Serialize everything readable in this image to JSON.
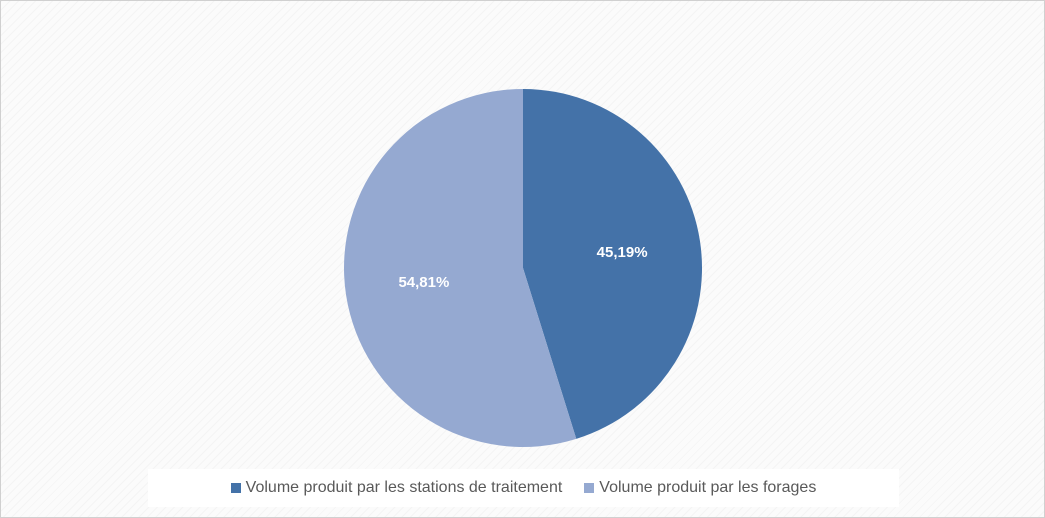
{
  "chart_data": {
    "type": "pie",
    "title": "",
    "slices": [
      {
        "label": "Volume produit par les stations de traitement",
        "value": 45.19,
        "value_label": "45,19%",
        "color": "#4472a8"
      },
      {
        "label": "Volume produit par les forages",
        "value": 54.81,
        "value_label": "54,81%",
        "color": "#95a9d1"
      }
    ],
    "legend_position": "bottom",
    "data_labels": "inside"
  }
}
